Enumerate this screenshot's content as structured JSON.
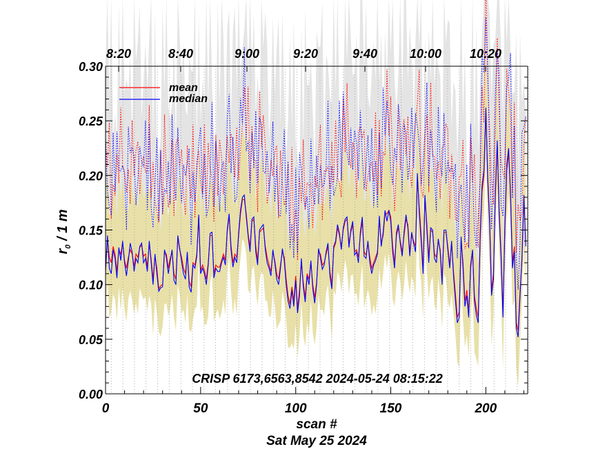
{
  "chart_data": {
    "type": "line",
    "xlabel": "scan #",
    "date_label": "Sat May 25 2024",
    "ylabel_main": "r",
    "ylabel_sub": "0",
    "ylabel_rest": " / 1 m",
    "annotation": "CRISP 6173,6563,8542 2024-05-24 08:15:22",
    "xlim": [
      0,
      222
    ],
    "ylim": [
      0.0,
      0.3
    ],
    "x_ticks": [
      "0",
      "50",
      "100",
      "150",
      "200"
    ],
    "y_ticks": [
      "0.00",
      "0.05",
      "0.10",
      "0.15",
      "0.20",
      "0.25",
      "0.30"
    ],
    "top_time_ticks": [
      "8:20",
      "8:40",
      "9:00",
      "9:20",
      "9:40",
      "10:00",
      "10:20"
    ],
    "legend": [
      {
        "label": "mean",
        "color": "#ff0000"
      },
      {
        "label": "median",
        "color": "#0000ff"
      }
    ],
    "legend_position": "top-left",
    "grid": "vertical dotted lines at scan boundaries",
    "colors": {
      "mean": "#ff0000",
      "median": "#0000ff",
      "band": "#e8e0a8",
      "upper_band": "#e4e4e4"
    },
    "series": [
      {
        "name": "mean",
        "values": [
          0.115,
          0.142,
          0.125,
          0.12,
          0.135,
          0.128,
          0.112,
          0.132,
          0.128,
          0.138,
          0.122,
          0.115,
          0.125,
          0.132,
          0.128,
          0.117,
          0.128,
          0.125,
          0.134,
          0.136,
          0.126,
          0.128,
          0.116,
          0.138,
          0.123,
          0.105,
          0.126,
          0.115,
          0.096,
          0.099,
          0.1,
          0.13,
          0.128,
          0.115,
          0.124,
          0.13,
          0.11,
          0.105,
          0.143,
          0.132,
          0.125,
          0.115,
          0.11,
          0.128,
          0.103,
          0.098,
          0.12,
          0.118,
          0.128,
          0.162,
          0.113,
          0.118,
          0.113,
          0.105,
          0.12,
          0.145,
          0.145,
          0.11,
          0.118,
          0.116,
          0.116,
          0.122,
          0.128,
          0.122,
          0.148,
          0.163,
          0.136,
          0.12,
          0.128,
          0.125,
          0.145,
          0.165,
          0.178,
          0.178,
          0.165,
          0.146,
          0.135,
          0.158,
          0.16,
          0.135,
          0.122,
          0.148,
          0.15,
          0.152,
          0.135,
          0.125,
          0.118,
          0.112,
          0.13,
          0.122,
          0.11,
          0.105,
          0.118,
          0.13,
          0.125,
          0.105,
          0.09,
          0.082,
          0.098,
          0.085,
          0.108,
          0.078,
          0.095,
          0.12,
          0.102,
          0.088,
          0.11,
          0.105,
          0.12,
          0.1,
          0.088,
          0.102,
          0.13,
          0.128,
          0.118,
          0.12,
          0.128,
          0.135,
          0.112,
          0.1,
          0.133,
          0.138,
          0.152,
          0.145,
          0.135,
          0.15,
          0.158,
          0.16,
          0.138,
          0.148,
          0.155,
          0.13,
          0.132,
          0.125,
          0.145,
          0.158,
          0.13,
          0.127,
          0.138,
          0.125,
          0.115,
          0.12,
          0.125,
          0.13,
          0.16,
          0.138,
          0.145,
          0.165,
          0.165,
          0.168,
          0.162,
          0.135,
          0.12,
          0.145,
          0.152,
          0.14,
          0.13,
          0.145,
          0.16,
          0.155,
          0.13,
          0.145,
          0.14,
          0.135,
          0.198,
          0.17,
          0.145,
          0.115,
          0.18,
          0.155,
          0.125,
          0.15,
          0.148,
          0.128,
          0.125,
          0.14,
          0.132,
          0.105,
          0.148,
          0.148,
          0.135,
          0.118,
          0.138,
          0.112,
          0.092,
          0.07,
          0.075,
          0.14,
          0.12,
          0.085,
          0.095,
          0.075,
          0.115,
          0.13,
          0.09,
          0.078,
          0.07,
          0.14,
          0.185,
          0.2,
          0.258,
          0.2,
          0.16,
          0.095,
          0.11,
          0.18,
          0.228,
          0.17,
          0.13,
          0.075,
          0.15,
          0.205,
          0.22,
          0.185,
          0.12,
          0.135,
          0.065,
          0.058,
          0.095,
          0.122,
          0.178,
          0.138
        ]
      },
      {
        "name": "median",
        "values": [
          0.112,
          0.145,
          0.115,
          0.11,
          0.132,
          0.124,
          0.106,
          0.134,
          0.122,
          0.14,
          0.12,
          0.108,
          0.122,
          0.138,
          0.13,
          0.112,
          0.124,
          0.12,
          0.135,
          0.138,
          0.12,
          0.124,
          0.112,
          0.14,
          0.12,
          0.1,
          0.128,
          0.11,
          0.094,
          0.097,
          0.098,
          0.132,
          0.125,
          0.11,
          0.121,
          0.132,
          0.104,
          0.1,
          0.145,
          0.133,
          0.121,
          0.11,
          0.105,
          0.13,
          0.098,
          0.093,
          0.118,
          0.115,
          0.126,
          0.164,
          0.11,
          0.115,
          0.11,
          0.1,
          0.118,
          0.147,
          0.148,
          0.106,
          0.115,
          0.112,
          0.112,
          0.12,
          0.125,
          0.118,
          0.15,
          0.165,
          0.132,
          0.116,
          0.125,
          0.12,
          0.148,
          0.168,
          0.18,
          0.182,
          0.162,
          0.144,
          0.13,
          0.16,
          0.162,
          0.13,
          0.118,
          0.15,
          0.153,
          0.155,
          0.132,
          0.12,
          0.115,
          0.108,
          0.132,
          0.12,
          0.105,
          0.1,
          0.115,
          0.133,
          0.122,
          0.1,
          0.085,
          0.078,
          0.095,
          0.08,
          0.104,
          0.074,
          0.09,
          0.124,
          0.098,
          0.084,
          0.108,
          0.1,
          0.122,
          0.096,
          0.083,
          0.1,
          0.133,
          0.125,
          0.114,
          0.118,
          0.13,
          0.138,
          0.108,
          0.096,
          0.135,
          0.14,
          0.155,
          0.147,
          0.132,
          0.152,
          0.16,
          0.162,
          0.134,
          0.15,
          0.158,
          0.127,
          0.13,
          0.12,
          0.148,
          0.162,
          0.126,
          0.124,
          0.14,
          0.12,
          0.11,
          0.118,
          0.122,
          0.128,
          0.163,
          0.135,
          0.148,
          0.168,
          0.158,
          0.168,
          0.158,
          0.13,
          0.115,
          0.148,
          0.155,
          0.138,
          0.126,
          0.148,
          0.164,
          0.152,
          0.126,
          0.148,
          0.138,
          0.13,
          0.202,
          0.165,
          0.14,
          0.11,
          0.182,
          0.15,
          0.12,
          0.152,
          0.15,
          0.124,
          0.12,
          0.142,
          0.13,
          0.1,
          0.15,
          0.15,
          0.132,
          0.115,
          0.14,
          0.108,
          0.086,
          0.065,
          0.07,
          0.144,
          0.115,
          0.08,
          0.09,
          0.07,
          0.118,
          0.132,
          0.085,
          0.072,
          0.065,
          0.145,
          0.19,
          0.205,
          0.262,
          0.195,
          0.155,
          0.09,
          0.105,
          0.185,
          0.232,
          0.165,
          0.125,
          0.07,
          0.155,
          0.21,
          0.225,
          0.18,
          0.115,
          0.13,
          0.06,
          0.052,
          0.09,
          0.125,
          0.182,
          0.135
        ]
      }
    ]
  }
}
